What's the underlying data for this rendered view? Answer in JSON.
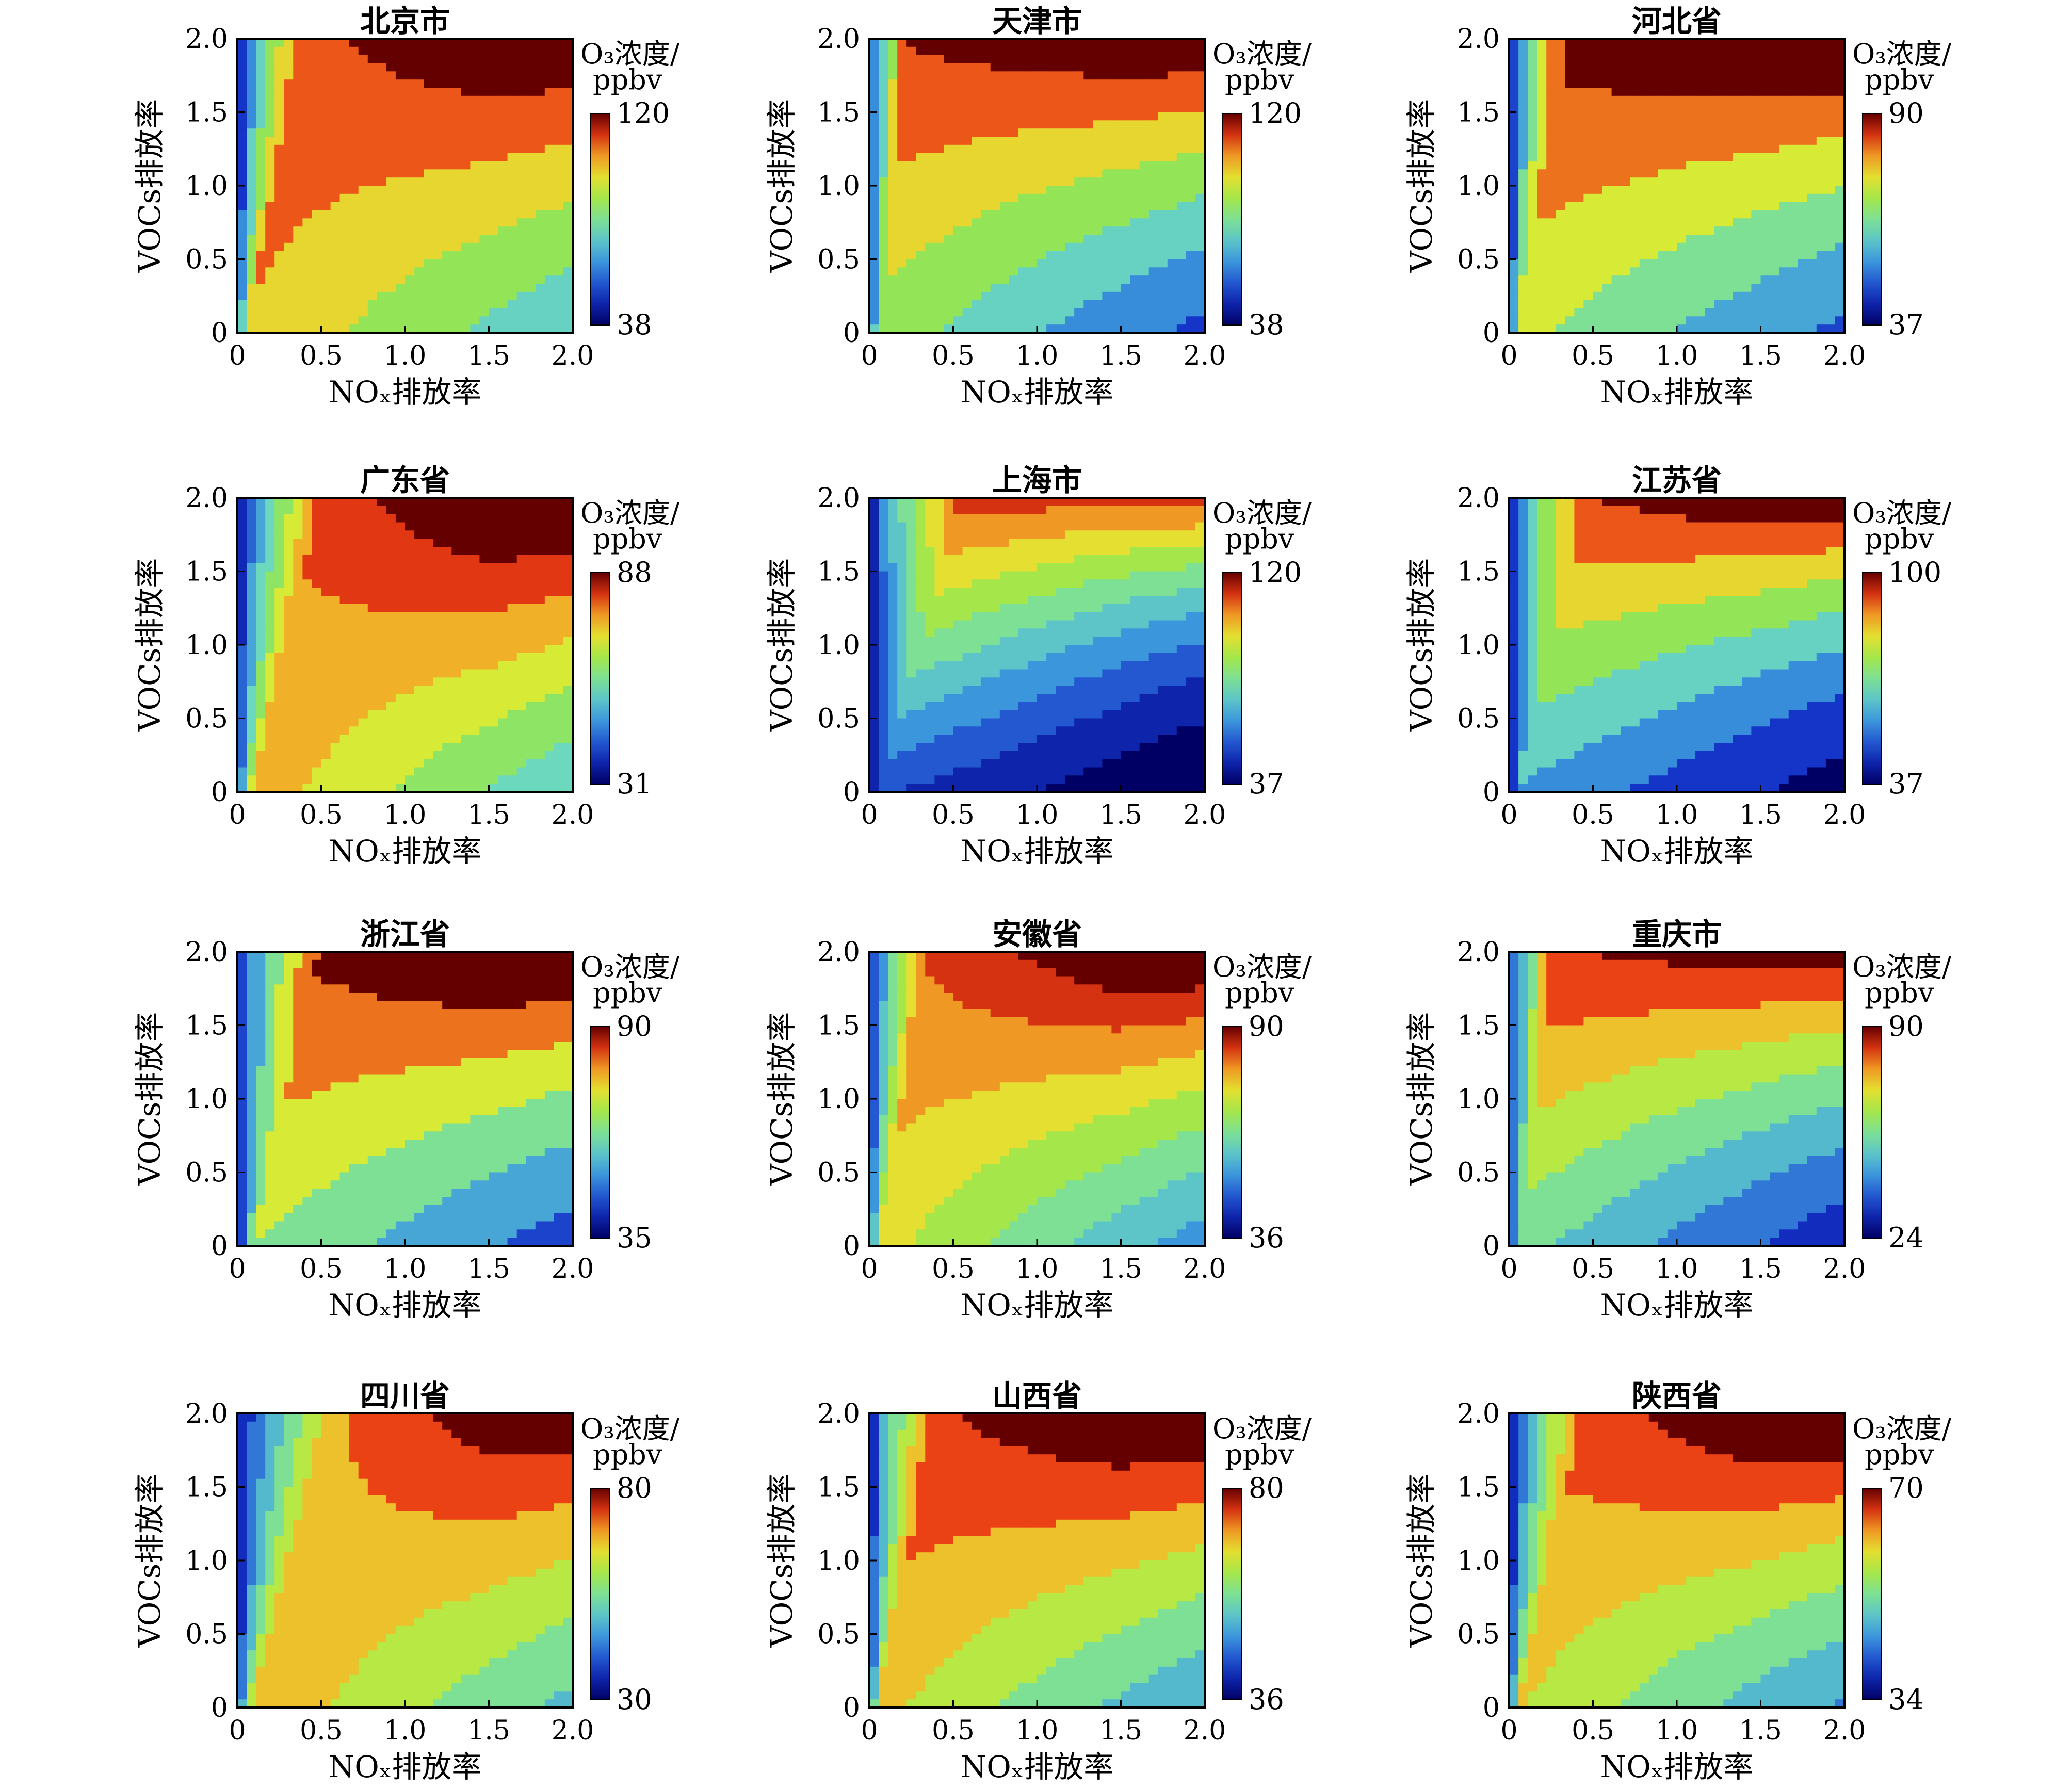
{
  "figure": {
    "colorbar_title_line1": "O₃浓度/",
    "colorbar_title_line2": "ppbv",
    "x_label": "NOₓ排放率",
    "y_label": "VOCs排放率",
    "tick_labels": [
      "0",
      "0.5",
      "1.0",
      "1.5",
      "2.0"
    ]
  },
  "chart_data": [
    {
      "type": "contour",
      "title": "北京市",
      "xlabel": "NOₓ排放率",
      "ylabel": "VOCs排放率",
      "xlim": [
        0,
        2
      ],
      "ylim": [
        0,
        2
      ],
      "colorbar_range": [
        38,
        120
      ],
      "colorbar_max_label": "120",
      "colorbar_min_label": "38",
      "ridge_nox": [
        0.05,
        0.4
      ],
      "vmax_tl": 0.76,
      "vmax_tr": 0.95,
      "vmax_br": 0.7,
      "levels": 8
    },
    {
      "type": "contour",
      "title": "天津市",
      "xlabel": "NOₓ排放率",
      "ylabel": "VOCs排放率",
      "xlim": [
        0,
        2
      ],
      "ylim": [
        0,
        2
      ],
      "colorbar_range": [
        38,
        120
      ],
      "colorbar_max_label": "120",
      "colorbar_min_label": "38",
      "ridge_nox": [
        0.05,
        0.25
      ],
      "vmax_tl": 0.85,
      "vmax_tr": 0.95,
      "vmax_br": 0.5,
      "levels": 8
    },
    {
      "type": "contour",
      "title": "河北省",
      "xlabel": "NOₓ排放率",
      "ylabel": "VOCs排放率",
      "xlim": [
        0,
        2
      ],
      "ylim": [
        0,
        2
      ],
      "colorbar_range": [
        37,
        90
      ],
      "colorbar_max_label": "90",
      "colorbar_min_label": "37",
      "ridge_nox": [
        0.05,
        0.35
      ],
      "vmax_tl": 0.85,
      "vmax_tr": 1.0,
      "vmax_br": 0.55,
      "levels": 7
    },
    {
      "type": "contour",
      "title": "广东省",
      "xlabel": "NOₓ排放率",
      "ylabel": "VOCs排放率",
      "xlim": [
        0,
        2
      ],
      "ylim": [
        0,
        2
      ],
      "colorbar_range": [
        31,
        88
      ],
      "colorbar_max_label": "88",
      "colorbar_min_label": "31",
      "ridge_nox": [
        0.1,
        0.5
      ],
      "vmax_tl": 0.7,
      "vmax_tr": 1.0,
      "vmax_br": 0.72,
      "levels": 10
    },
    {
      "type": "contour",
      "title": "上海市",
      "xlabel": "NOₓ排放率",
      "ylabel": "VOCs排放率",
      "xlim": [
        0,
        2
      ],
      "ylim": [
        0,
        2
      ],
      "colorbar_range": [
        37,
        120
      ],
      "colorbar_max_label": "120",
      "colorbar_min_label": "37",
      "ridge_nox": [
        0.05,
        0.55
      ],
      "vmax_tl": 0.85,
      "vmax_tr": 0.8,
      "vmax_br": 0.05,
      "levels": 11
    },
    {
      "type": "contour",
      "title": "江苏省",
      "xlabel": "NOₓ排放率",
      "ylabel": "VOCs排放率",
      "xlim": [
        0,
        2
      ],
      "ylim": [
        0,
        2
      ],
      "colorbar_range": [
        37,
        100
      ],
      "colorbar_max_label": "100",
      "colorbar_min_label": "37",
      "ridge_nox": [
        0.05,
        0.45
      ],
      "vmax_tl": 0.8,
      "vmax_tr": 0.95,
      "vmax_br": 0.25,
      "levels": 8
    },
    {
      "type": "contour",
      "title": "浙江省",
      "xlabel": "NOₓ排放率",
      "ylabel": "VOCs排放率",
      "xlim": [
        0,
        2
      ],
      "ylim": [
        0,
        2
      ],
      "colorbar_range": [
        35,
        90
      ],
      "colorbar_max_label": "90",
      "colorbar_min_label": "35",
      "ridge_nox": [
        0.1,
        0.5
      ],
      "vmax_tl": 0.8,
      "vmax_tr": 1.0,
      "vmax_br": 0.5,
      "levels": 7
    },
    {
      "type": "contour",
      "title": "安徽省",
      "xlabel": "NOₓ排放率",
      "ylabel": "VOCs排放率",
      "xlim": [
        0,
        2
      ],
      "ylim": [
        0,
        2
      ],
      "colorbar_range": [
        36,
        90
      ],
      "colorbar_max_label": "90",
      "colorbar_min_label": "36",
      "ridge_nox": [
        0.05,
        0.35
      ],
      "vmax_tl": 0.75,
      "vmax_tr": 0.97,
      "vmax_br": 0.62,
      "levels": 11
    },
    {
      "type": "contour",
      "title": "重庆市",
      "xlabel": "NOₓ排放率",
      "ylabel": "VOCs排放率",
      "xlim": [
        0,
        2
      ],
      "ylim": [
        0,
        2
      ],
      "colorbar_range": [
        24,
        90
      ],
      "colorbar_max_label": "90",
      "colorbar_min_label": "24",
      "ridge_nox": [
        0.05,
        0.3
      ],
      "vmax_tl": 0.85,
      "vmax_tr": 0.9,
      "vmax_br": 0.4,
      "levels": 9
    },
    {
      "type": "contour",
      "title": "四川省",
      "xlabel": "NOₓ排放率",
      "ylabel": "VOCs排放率",
      "xlim": [
        0,
        2
      ],
      "ylim": [
        0,
        2
      ],
      "colorbar_range": [
        30,
        80
      ],
      "colorbar_max_label": "80",
      "colorbar_min_label": "30",
      "ridge_nox": [
        0.1,
        0.6
      ],
      "vmax_tl": 0.6,
      "vmax_tr": 0.92,
      "vmax_br": 0.72,
      "levels": 9
    },
    {
      "type": "contour",
      "title": "山西省",
      "xlabel": "NOₓ排放率",
      "ylabel": "VOCs排放率",
      "xlim": [
        0,
        2
      ],
      "ylim": [
        0,
        2
      ],
      "colorbar_range": [
        36,
        80
      ],
      "colorbar_max_label": "80",
      "colorbar_min_label": "36",
      "ridge_nox": [
        0.05,
        0.4
      ],
      "vmax_tl": 0.8,
      "vmax_tr": 0.98,
      "vmax_br": 0.65,
      "levels": 9
    },
    {
      "type": "contour",
      "title": "陕西省",
      "xlabel": "NOₓ排放率",
      "ylabel": "VOCs排放率",
      "xlim": [
        0,
        2
      ],
      "ylim": [
        0,
        2
      ],
      "colorbar_range": [
        34,
        70
      ],
      "colorbar_max_label": "70",
      "colorbar_min_label": "34",
      "ridge_nox": [
        0.05,
        0.45
      ],
      "vmax_tl": 0.72,
      "vmax_tr": 0.98,
      "vmax_br": 0.62,
      "levels": 9
    }
  ]
}
